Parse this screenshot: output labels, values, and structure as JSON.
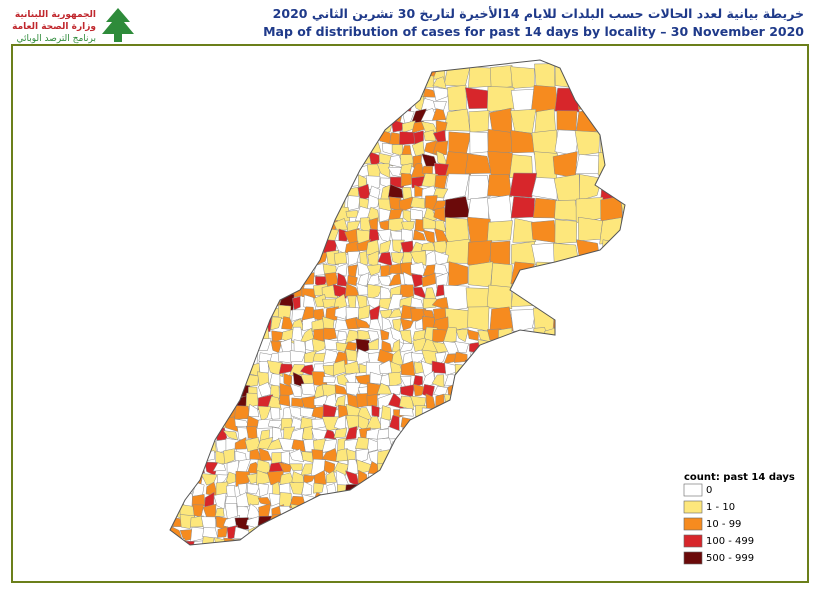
{
  "header": {
    "logo_text": [
      "الجمهورية اللبنانية",
      "وزارة الصحة العامة",
      "برنامج الترصد الوبائي"
    ],
    "title_ar": "خريطة بيانية لعدد الحالات حسب البلدات للايام 14الأخيرة لتاريخ  30 تشرين الثاني 2020",
    "title_en": "Map of distribution of cases for past 14 days by locality – 30 November 2020"
  },
  "legend": {
    "title": "count: past 14 days",
    "entries": [
      {
        "label": "0",
        "color": "#ffffff"
      },
      {
        "label": "1 - 10",
        "color": "#fde77c"
      },
      {
        "label": "10 - 99",
        "color": "#f68b1f"
      },
      {
        "label": "100 - 499",
        "color": "#d7262b"
      },
      {
        "label": "500 - 999",
        "color": "#6b0a0a"
      }
    ]
  }
}
